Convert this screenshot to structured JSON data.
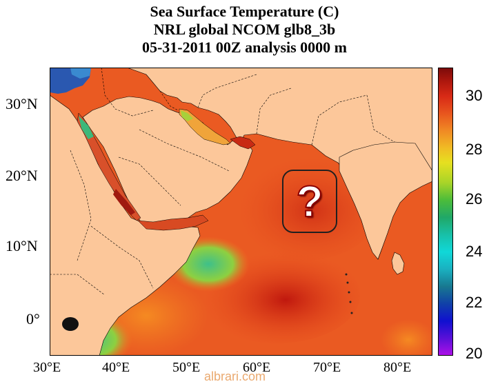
{
  "title": {
    "line1": "Sea Surface Temperature (C)",
    "line2": "NRL global NCOM glb8_3b",
    "line3": "05-31-2011 00Z analysis   0000 m"
  },
  "axes": {
    "latitude_ticks": [
      "30°N",
      "20°N",
      "10°N",
      "0°"
    ],
    "longitude_ticks": [
      "30°E",
      "40°E",
      "50°E",
      "60°E",
      "70°E",
      "80°E"
    ]
  },
  "colorbar": {
    "labels": [
      "30",
      "28",
      "26",
      "24",
      "22",
      "20"
    ],
    "min": 20,
    "max": 31
  },
  "overlay": {
    "symbol": "?"
  },
  "watermark": "albrari.com",
  "colors": {
    "land": "#fcc79a",
    "warm_sea": "#e8491c",
    "hot_sea": "#c41e10",
    "green_sea": "#5cc24a"
  }
}
